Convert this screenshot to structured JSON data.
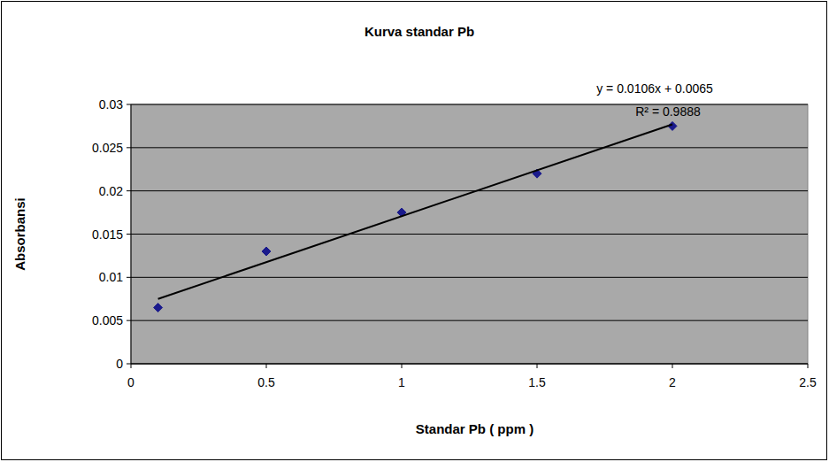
{
  "chart_data": {
    "type": "scatter",
    "title": "Kurva standar Pb",
    "x_label": "Standar Pb ( ppm )",
    "y_label": "Absorbansi",
    "annotations": [
      "y = 0.0106x + 0.0065",
      "R² = 0.9888"
    ],
    "series": [
      {
        "type": "scatter",
        "marker": "diamond",
        "color": "#1a1a8c",
        "x": [
          0.1,
          0.5,
          1,
          1.5,
          2
        ],
        "values": [
          0.0065,
          0.013,
          0.0175,
          0.022,
          0.0275
        ]
      },
      {
        "type": "line",
        "line_style": "solid",
        "color": "#000000",
        "x": [
          0.1,
          2
        ],
        "values": [
          0.0075,
          0.0277
        ]
      }
    ],
    "xlim": [
      0,
      2.5
    ],
    "xticks": [
      0,
      0.5,
      1,
      1.5,
      2,
      2.5
    ],
    "ylim": [
      0,
      0.03
    ],
    "yticks": [
      0,
      0.005,
      0.01,
      0.015,
      0.02,
      0.025,
      0.03
    ],
    "grid": true
  }
}
